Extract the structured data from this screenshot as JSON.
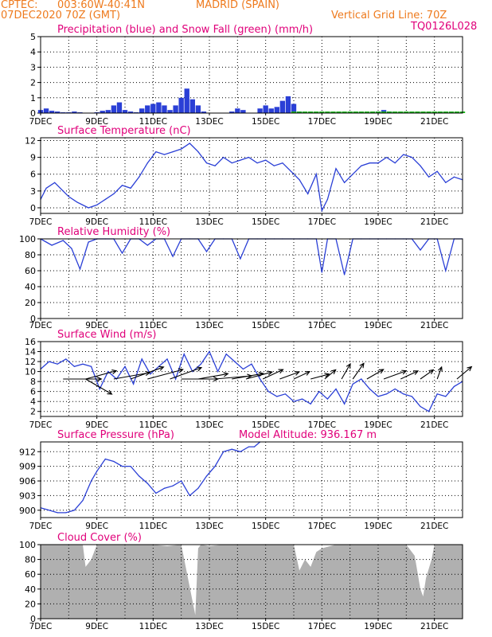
{
  "header": {
    "source": "CPTEC:",
    "coords": "003:60W-40:41N",
    "location": "MADRID (SPAIN)",
    "run": "07DEC2020 70Z (GMT)",
    "grid_note": "Vertical Grid Line: 70Z",
    "code": "TQ0126L028",
    "model_altitude": "Model Altitude: 936.167 m"
  },
  "colors": {
    "header_text": "#ee7a1d",
    "panel_title": "#e0007a",
    "line": "#2a3fd6",
    "snow": "#18b418",
    "cloud": "#b0b0b0"
  },
  "chart_data": [
    {
      "type": "bar",
      "title": "Precipitation (blue) and Snow Fall (green) (mm/h)",
      "x_ticks": [
        "7DEC",
        "9DEC",
        "11DEC",
        "13DEC",
        "15DEC",
        "17DEC",
        "19DEC",
        "21DEC"
      ],
      "ylim": [
        0,
        5
      ],
      "y_ticks": [
        0,
        1,
        2,
        3,
        4,
        5
      ],
      "grid": true,
      "x": [
        7.0,
        7.2,
        7.4,
        7.6,
        7.8,
        8.0,
        8.2,
        8.4,
        8.6,
        8.8,
        9.0,
        9.2,
        9.4,
        9.6,
        9.8,
        10.0,
        10.2,
        10.4,
        10.6,
        10.8,
        11.0,
        11.2,
        11.4,
        11.6,
        11.8,
        12.0,
        12.2,
        12.4,
        12.6,
        12.8,
        13.0,
        13.2,
        13.4,
        13.6,
        13.8,
        14.0,
        14.2,
        14.4,
        14.6,
        14.8,
        15.0,
        15.2,
        15.4,
        15.6,
        15.8,
        16.0,
        16.2,
        16.4,
        16.6,
        16.8,
        17.0,
        17.2,
        17.4,
        17.6,
        17.8,
        18.0,
        18.2,
        18.4,
        18.6,
        18.8,
        19.0,
        19.2,
        19.4,
        19.6,
        19.8,
        20.0,
        20.2,
        20.4,
        20.6,
        20.8,
        21.0,
        21.2,
        21.4,
        21.6,
        21.8,
        22.0
      ],
      "series": [
        {
          "name": "Precipitation",
          "values": [
            0.2,
            0.3,
            0.15,
            0.1,
            0.05,
            0.05,
            0.1,
            0.05,
            0.0,
            0.0,
            0.05,
            0.15,
            0.2,
            0.5,
            0.7,
            0.2,
            0.1,
            0.05,
            0.3,
            0.5,
            0.6,
            0.7,
            0.5,
            0.2,
            0.5,
            1.0,
            1.6,
            0.9,
            0.5,
            0.1,
            0.0,
            0.0,
            0.0,
            0.0,
            0.1,
            0.3,
            0.2,
            0.0,
            0.0,
            0.3,
            0.5,
            0.3,
            0.4,
            0.8,
            1.1,
            0.6,
            0.1,
            0.0,
            0.0,
            0.0,
            0.0,
            0.0,
            0.0,
            0.0,
            0.0,
            0.0,
            0.05,
            0.05,
            0.0,
            0.0,
            0.1,
            0.2,
            0.1,
            0.05,
            0.05,
            0.0,
            0.0,
            0.0,
            0.0,
            0.0,
            0.05,
            0.05,
            0.0,
            0.0,
            0.0,
            0.0
          ]
        },
        {
          "name": "Snow Fall",
          "values": [
            0,
            0,
            0,
            0,
            0,
            0,
            0,
            0,
            0,
            0,
            0,
            0,
            0,
            0,
            0,
            0,
            0,
            0,
            0,
            0,
            0,
            0,
            0,
            0,
            0,
            0,
            0,
            0,
            0,
            0,
            0,
            0,
            0,
            0,
            0,
            0,
            0,
            0,
            0,
            0,
            0,
            0,
            0,
            0,
            0,
            0.1,
            0.1,
            0.1,
            0.1,
            0.1,
            0.1,
            0.1,
            0.1,
            0.1,
            0.1,
            0.1,
            0.1,
            0.1,
            0.1,
            0.1,
            0.1,
            0.1,
            0.1,
            0.1,
            0.1,
            0.1,
            0.1,
            0.1,
            0.1,
            0.1,
            0.1,
            0.1,
            0.1,
            0.1,
            0.1,
            0.1
          ]
        }
      ]
    },
    {
      "type": "line",
      "title": "Surface Temperature (nC)",
      "x_ticks": [
        "7DEC",
        "9DEC",
        "11DEC",
        "13DEC",
        "15DEC",
        "17DEC",
        "19DEC",
        "21DEC"
      ],
      "ylim": [
        -1,
        12.5
      ],
      "y_ticks": [
        0,
        3,
        6,
        9,
        12
      ],
      "grid": true,
      "series": [
        {
          "name": "Temperature",
          "x": [
            7.0,
            7.2,
            7.5,
            7.8,
            8.0,
            8.3,
            8.7,
            9.0,
            9.3,
            9.6,
            9.9,
            10.2,
            10.5,
            10.8,
            11.1,
            11.4,
            11.7,
            12.0,
            12.3,
            12.6,
            12.9,
            13.2,
            13.5,
            13.8,
            14.1,
            14.4,
            14.7,
            15.0,
            15.3,
            15.6,
            15.9,
            16.2,
            16.5,
            16.8,
            17.0,
            17.2,
            17.5,
            17.8,
            18.1,
            18.4,
            18.7,
            19.0,
            19.3,
            19.6,
            19.9,
            20.2,
            20.5,
            20.8,
            21.1,
            21.4,
            21.7,
            22.0
          ],
          "values": [
            1.5,
            3.5,
            4.5,
            3.0,
            2.0,
            1.0,
            0.0,
            0.5,
            1.5,
            2.5,
            4.0,
            3.5,
            5.5,
            8.0,
            10.0,
            9.5,
            10.0,
            10.5,
            11.5,
            10.0,
            8.0,
            7.5,
            9.0,
            8.0,
            8.5,
            9.0,
            8.0,
            8.5,
            7.5,
            8.0,
            6.5,
            5.0,
            2.5,
            6.0,
            -0.5,
            1.5,
            7.0,
            4.5,
            6.0,
            7.5,
            8.0,
            8.0,
            9.0,
            8.0,
            9.5,
            9.0,
            7.5,
            5.5,
            6.5,
            4.5,
            5.5,
            5.0
          ]
        }
      ]
    },
    {
      "type": "line",
      "title": "Relative Humidity (%)",
      "x_ticks": [
        "7DEC",
        "9DEC",
        "11DEC",
        "13DEC",
        "15DEC",
        "17DEC",
        "19DEC",
        "21DEC"
      ],
      "ylim": [
        0,
        100
      ],
      "y_ticks": [
        0,
        20,
        40,
        60,
        80,
        100
      ],
      "grid": true,
      "series": [
        {
          "name": "Humidity",
          "x": [
            7.0,
            7.4,
            7.8,
            8.1,
            8.4,
            8.7,
            9.0,
            9.3,
            9.6,
            9.9,
            10.2,
            10.5,
            10.8,
            11.1,
            11.4,
            11.7,
            12.0,
            12.3,
            12.6,
            12.9,
            13.2,
            13.5,
            13.8,
            14.1,
            14.4,
            14.7,
            15.0,
            15.3,
            15.6,
            15.9,
            16.2,
            16.5,
            16.8,
            17.0,
            17.2,
            17.5,
            17.8,
            18.1,
            18.4,
            18.7,
            19.0,
            19.3,
            19.6,
            19.9,
            20.2,
            20.5,
            20.8,
            21.1,
            21.4,
            21.7,
            22.0
          ],
          "values": [
            100,
            92,
            98,
            88,
            62,
            96,
            100,
            100,
            100,
            82,
            100,
            100,
            92,
            100,
            100,
            78,
            100,
            100,
            100,
            84,
            100,
            100,
            100,
            75,
            100,
            100,
            100,
            100,
            100,
            100,
            100,
            100,
            100,
            58,
            100,
            100,
            55,
            100,
            100,
            100,
            100,
            100,
            100,
            100,
            100,
            86,
            100,
            100,
            60,
            100,
            100
          ]
        }
      ]
    },
    {
      "type": "line",
      "title": "Surface Wind (m/s)",
      "x_ticks": [
        "7DEC",
        "9DEC",
        "11DEC",
        "13DEC",
        "15DEC",
        "17DEC",
        "19DEC",
        "21DEC"
      ],
      "ylim": [
        1,
        16
      ],
      "y_ticks": [
        2,
        4,
        6,
        8,
        10,
        12,
        14,
        16
      ],
      "grid": true,
      "series": [
        {
          "name": "Wind speed",
          "x": [
            7.0,
            7.3,
            7.6,
            7.9,
            8.2,
            8.5,
            8.8,
            9.1,
            9.4,
            9.7,
            10.0,
            10.3,
            10.6,
            10.9,
            11.2,
            11.5,
            11.8,
            12.1,
            12.4,
            12.7,
            13.0,
            13.3,
            13.6,
            13.9,
            14.2,
            14.5,
            14.8,
            15.1,
            15.4,
            15.7,
            16.0,
            16.3,
            16.6,
            16.9,
            17.2,
            17.5,
            17.8,
            18.1,
            18.4,
            18.7,
            19.0,
            19.3,
            19.6,
            19.9,
            20.2,
            20.5,
            20.8,
            21.1,
            21.4,
            21.7,
            22.0
          ],
          "values": [
            10.5,
            12.0,
            11.5,
            12.5,
            11.0,
            11.5,
            11.0,
            6.5,
            10.0,
            8.5,
            11.0,
            7.5,
            12.5,
            9.5,
            11.0,
            12.5,
            8.5,
            13.5,
            10.0,
            11.5,
            14.0,
            10.0,
            13.5,
            12.0,
            10.5,
            11.5,
            8.5,
            6.0,
            5.0,
            5.5,
            4.0,
            4.5,
            3.5,
            6.0,
            4.5,
            6.5,
            3.5,
            7.5,
            8.5,
            6.5,
            5.0,
            5.5,
            6.5,
            5.5,
            5.0,
            3.0,
            2.0,
            5.5,
            5.0,
            7.0,
            8.0
          ]
        }
      ],
      "arrows": [
        {
          "day": 7.8,
          "angle": 0,
          "len": 48
        },
        {
          "day": 8.6,
          "angle": -15,
          "len": 40
        },
        {
          "day": 8.6,
          "angle": 30,
          "len": 38
        },
        {
          "day": 9.6,
          "angle": -10,
          "len": 46
        },
        {
          "day": 10.2,
          "angle": -20,
          "len": 44
        },
        {
          "day": 10.8,
          "angle": -15,
          "len": 46
        },
        {
          "day": 11.6,
          "angle": -20,
          "len": 42
        },
        {
          "day": 12.0,
          "angle": 0,
          "len": 46
        },
        {
          "day": 12.6,
          "angle": -10,
          "len": 38
        },
        {
          "day": 13.2,
          "angle": -5,
          "len": 46
        },
        {
          "day": 13.8,
          "angle": -10,
          "len": 40
        },
        {
          "day": 14.3,
          "angle": -15,
          "len": 34
        },
        {
          "day": 14.9,
          "angle": -25,
          "len": 28
        },
        {
          "day": 15.5,
          "angle": -20,
          "len": 26
        },
        {
          "day": 16.0,
          "angle": -25,
          "len": 22
        },
        {
          "day": 16.6,
          "angle": -15,
          "len": 24
        },
        {
          "day": 17.1,
          "angle": -40,
          "len": 18
        },
        {
          "day": 17.7,
          "angle": -60,
          "len": 22
        },
        {
          "day": 18.1,
          "angle": -55,
          "len": 24
        },
        {
          "day": 18.6,
          "angle": -30,
          "len": 24
        },
        {
          "day": 19.2,
          "angle": -20,
          "len": 30
        },
        {
          "day": 19.8,
          "angle": -25,
          "len": 24
        },
        {
          "day": 20.5,
          "angle": -35,
          "len": 20
        },
        {
          "day": 21.1,
          "angle": -70,
          "len": 16
        },
        {
          "day": 21.8,
          "angle": -40,
          "len": 24
        }
      ]
    },
    {
      "type": "line",
      "title": "Surface Pressure (hPa)",
      "x_ticks": [
        "7DEC",
        "9DEC",
        "11DEC",
        "13DEC",
        "15DEC",
        "17DEC",
        "19DEC",
        "21DEC"
      ],
      "ylim": [
        898.5,
        914
      ],
      "y_ticks": [
        900,
        903,
        906,
        909,
        912
      ],
      "grid": true,
      "series": [
        {
          "name": "Pressure",
          "x": [
            7.0,
            7.3,
            7.6,
            7.9,
            8.2,
            8.5,
            8.8,
            9.0,
            9.3,
            9.6,
            9.9,
            10.2,
            10.5,
            10.8,
            11.1,
            11.4,
            11.7,
            12.0,
            12.3,
            12.6,
            12.9,
            13.2,
            13.5,
            13.8,
            14.1,
            14.4,
            14.6,
            14.8
          ],
          "values": [
            900.5,
            900,
            899.5,
            899.5,
            900,
            902,
            906,
            908,
            910.5,
            910,
            909,
            909,
            907,
            905.5,
            903.5,
            904.5,
            905,
            906,
            903,
            904.5,
            907,
            909,
            912,
            912.5,
            912,
            913,
            913,
            914
          ]
        }
      ]
    },
    {
      "type": "area",
      "title": "Cloud Cover (%)",
      "x_ticks": [
        "7DEC",
        "9DEC",
        "11DEC",
        "13DEC",
        "15DEC",
        "17DEC",
        "19DEC",
        "21DEC"
      ],
      "ylim": [
        0,
        100
      ],
      "y_ticks": [
        0,
        20,
        40,
        60,
        80,
        100
      ],
      "grid": true,
      "series": [
        {
          "name": "Cloud Cover",
          "x": [
            7.0,
            7.5,
            8.0,
            8.5,
            8.6,
            8.7,
            8.8,
            9.0,
            9.5,
            10.0,
            10.5,
            11.0,
            11.5,
            12.0,
            12.5,
            12.6,
            12.7,
            13.0,
            13.5,
            14.0,
            14.5,
            15.0,
            15.5,
            16.0,
            16.2,
            16.4,
            16.6,
            16.8,
            17.0,
            17.5,
            18.0,
            18.5,
            19.0,
            19.5,
            20.0,
            20.3,
            20.5,
            20.6,
            20.7,
            20.9,
            21.0,
            21.5,
            22.0
          ],
          "values": [
            100,
            100,
            100,
            100,
            70,
            75,
            80,
            100,
            100,
            100,
            100,
            100,
            98,
            100,
            5,
            95,
            100,
            98,
            100,
            100,
            100,
            100,
            100,
            100,
            65,
            80,
            70,
            90,
            95,
            100,
            100,
            100,
            100,
            100,
            100,
            85,
            40,
            30,
            55,
            80,
            100,
            100,
            100
          ]
        }
      ]
    }
  ]
}
